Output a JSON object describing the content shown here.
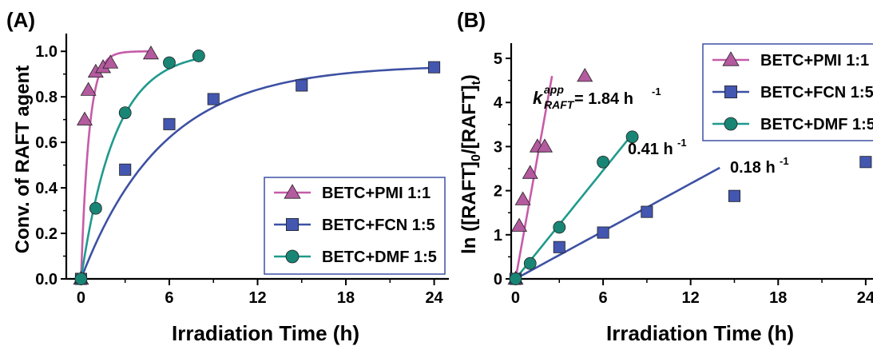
{
  "colors": {
    "pmi": "#c65ca8",
    "pmi_marker": "#b45a9e",
    "fcn": "#3d51a3",
    "fcn_marker": "#4356b0",
    "dmf": "#1f9a8c",
    "dmf_marker": "#198575",
    "axis": "#000000",
    "legend_border": "#3d51a3"
  },
  "chart_data": [
    {
      "type": "scatter",
      "panel_label": "(A)",
      "title": "",
      "xlabel": "Irradiation Time (h)",
      "ylabel": "Conv. of RAFT agent",
      "xlim": [
        -1,
        25
      ],
      "ylim": [
        0,
        1.05
      ],
      "xticks": [
        "0",
        "6",
        "12",
        "18",
        "24"
      ],
      "yticks": [
        "0.0",
        "0.2",
        "0.4",
        "0.6",
        "0.8",
        "1.0"
      ],
      "legend_position": "bottom-right",
      "grid": false,
      "series": [
        {
          "name": "BETC+PMI 1:1",
          "marker": "triangle",
          "color_key": "pmi",
          "x": [
            0,
            0.25,
            0.5,
            1,
            1.5,
            2,
            4.75
          ],
          "y": [
            0,
            0.7,
            0.83,
            0.91,
            0.93,
            0.95,
            0.99
          ],
          "fit": {
            "kind": "exponential",
            "plateau": 1.0,
            "k": 1.84,
            "x_end": 4.75
          }
        },
        {
          "name": "BETC+FCN 1:5",
          "marker": "square",
          "color_key": "fcn",
          "x": [
            0,
            3,
            6,
            9,
            15,
            24
          ],
          "y": [
            0,
            0.48,
            0.68,
            0.79,
            0.85,
            0.93
          ],
          "fit": {
            "kind": "exponential",
            "plateau": 0.94,
            "k": 0.18,
            "x_end": 24
          }
        },
        {
          "name": "BETC+DMF 1:5",
          "marker": "circle",
          "color_key": "dmf",
          "x": [
            0,
            1,
            3,
            6,
            8
          ],
          "y": [
            0,
            0.31,
            0.73,
            0.95,
            0.98
          ],
          "fit": {
            "kind": "exponential",
            "plateau": 1.0,
            "k": 0.43,
            "x_end": 8
          }
        }
      ]
    },
    {
      "type": "scatter",
      "panel_label": "(B)",
      "title": "",
      "xlabel": "Irradiation Time (h)",
      "ylabel": "ln ([RAFT]0/[RAFT]t)",
      "xlim": [
        -0.3,
        24.5
      ],
      "ylim": [
        0,
        5.2
      ],
      "xticks": [
        "0",
        "6",
        "12",
        "18",
        "24"
      ],
      "yticks": [
        "0",
        "1",
        "2",
        "3",
        "4",
        "5"
      ],
      "legend_position": "top-right",
      "grid": false,
      "series": [
        {
          "name": "BETC+PMI 1:1",
          "marker": "triangle",
          "color_key": "pmi",
          "x": [
            0,
            0.25,
            0.5,
            1,
            1.5,
            2,
            4.75
          ],
          "y": [
            0,
            1.2,
            1.8,
            2.4,
            3.0,
            3.0,
            4.6
          ],
          "fit": {
            "kind": "linear",
            "slope": 1.84,
            "x_end": 2.5
          }
        },
        {
          "name": "BETC+FCN 1:5",
          "marker": "square",
          "color_key": "fcn",
          "x": [
            0,
            3,
            6,
            9,
            15,
            24
          ],
          "y": [
            0,
            0.72,
            1.05,
            1.52,
            1.88,
            2.65
          ],
          "fit": {
            "kind": "linear",
            "slope": 0.18,
            "x_end": 14
          }
        },
        {
          "name": "BETC+DMF 1:5",
          "marker": "circle",
          "color_key": "dmf",
          "x": [
            0,
            1,
            3,
            6,
            8
          ],
          "y": [
            0,
            0.35,
            1.17,
            2.65,
            3.22
          ],
          "fit": {
            "kind": "linear",
            "slope": 0.41,
            "x_end": 8
          }
        }
      ],
      "annotations": [
        {
          "text_main": "k",
          "text_sup": "app",
          "text_sub": "RAFT",
          "text_rest": "= 1.84 h",
          "text_unit_sup": "-1",
          "series": "BETC+PMI 1:1"
        },
        {
          "text_main": "0.41 h",
          "text_unit_sup": "-1",
          "series": "BETC+DMF 1:5"
        },
        {
          "text_main": "0.18 h",
          "text_unit_sup": "-1",
          "series": "BETC+FCN 1:5"
        }
      ],
      "ylabel_parts": {
        "prefix": "ln ([RAFT]",
        "sub0": "0",
        "mid": "/[RAFT]",
        "subt": "t",
        "suffix": ")"
      }
    }
  ]
}
